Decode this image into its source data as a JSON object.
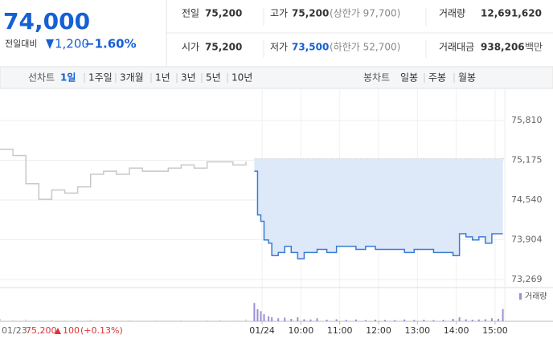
{
  "header": {
    "price": "74,000",
    "change_label": "전일대비",
    "change": "1,200",
    "change_pct": "−1.60%"
  },
  "info": [
    [
      {
        "label": "전일",
        "value": "75,200"
      },
      {
        "label": "고가",
        "value": "75,200",
        "note": "(상한가 97,700)"
      },
      {
        "label": "거래량",
        "value": "12,691,620"
      }
    ],
    [
      {
        "label": "시가",
        "value": "75,200"
      },
      {
        "label": "저가",
        "value": "73,500",
        "note": "(하한가 52,700)"
      },
      {
        "label": "거래대금",
        "value": "938,206",
        "note": "백만"
      }
    ]
  ],
  "tabs": {
    "line_label": "선차트",
    "line_periods": [
      "1일",
      "1주일",
      "3개월",
      "1년",
      "3년",
      "5년",
      "10년"
    ],
    "candle_label": "봉차트",
    "candle_periods": [
      "일봉",
      "주봉",
      "월봉"
    ]
  },
  "footer": {
    "date": "01/23",
    "close": "75,200",
    "change": "100",
    "change_pct": "(+0.13%)"
  },
  "chart_data": {
    "type": "line",
    "xlim": [
      135,
      915
    ],
    "ylim": [
      73140,
      76350
    ],
    "yticks": [
      {
        "value": 75810,
        "label": "75,810"
      },
      {
        "value": 75175,
        "label": "75,175"
      },
      {
        "value": 74540,
        "label": "74,540"
      },
      {
        "value": 73904,
        "label": "73,904"
      },
      {
        "value": 73269,
        "label": "73,269"
      }
    ],
    "xticks": [
      {
        "value": 540,
        "label": "01/24"
      },
      {
        "value": 600,
        "label": "10:00"
      },
      {
        "value": 660,
        "label": "11:00"
      },
      {
        "value": 720,
        "label": "12:00"
      },
      {
        "value": 780,
        "label": "13:00"
      },
      {
        "value": 840,
        "label": "14:00"
      },
      {
        "value": 900,
        "label": "15:00"
      }
    ],
    "reference_line": 75200,
    "volume_label": "거래량",
    "volume_ylim": [
      0,
      1500000
    ],
    "series": [
      {
        "color": "#c8c8c8",
        "volume_color": "#d6d6d6",
        "x": [
          135,
          155,
          175,
          195,
          215,
          235,
          255,
          275,
          295,
          315,
          335,
          355,
          375,
          395,
          415,
          435,
          455,
          475,
          495,
          515
        ],
        "values": [
          75350,
          75250,
          74800,
          74550,
          74700,
          74650,
          74750,
          74950,
          75000,
          74950,
          75050,
          75000,
          75000,
          75050,
          75100,
          75050,
          75150,
          75150,
          75100,
          75150
        ],
        "volume": [
          120000,
          60000,
          90000,
          40000,
          70000,
          50000,
          60000,
          80000,
          40000,
          50000,
          60000,
          30000,
          50000,
          40000,
          60000,
          30000,
          50000,
          70000,
          40000,
          90000
        ]
      },
      {
        "color": "#3a7bd5",
        "fill": "#dde8f8",
        "volume_color": "#9d8fd6",
        "x": [
          528,
          533,
          538,
          543,
          550,
          555,
          565,
          575,
          585,
          595,
          605,
          615,
          625,
          640,
          655,
          670,
          685,
          700,
          715,
          730,
          745,
          760,
          775,
          790,
          805,
          820,
          835,
          845,
          855,
          865,
          875,
          885,
          895,
          905,
          912
        ],
        "values": [
          75000,
          74300,
          74200,
          73900,
          73850,
          73650,
          73700,
          73800,
          73700,
          73600,
          73700,
          73700,
          73750,
          73700,
          73800,
          73800,
          73750,
          73800,
          73750,
          73750,
          73750,
          73700,
          73750,
          73750,
          73700,
          73700,
          73650,
          74000,
          73950,
          73900,
          73950,
          73850,
          74000,
          74000,
          74000
        ],
        "volume": [
          900000,
          600000,
          500000,
          350000,
          250000,
          200000,
          150000,
          180000,
          120000,
          200000,
          100000,
          90000,
          150000,
          80000,
          100000,
          70000,
          90000,
          60000,
          80000,
          70000,
          60000,
          90000,
          70000,
          80000,
          60000,
          70000,
          120000,
          200000,
          100000,
          80000,
          90000,
          100000,
          150000,
          120000,
          600000
        ]
      }
    ]
  }
}
